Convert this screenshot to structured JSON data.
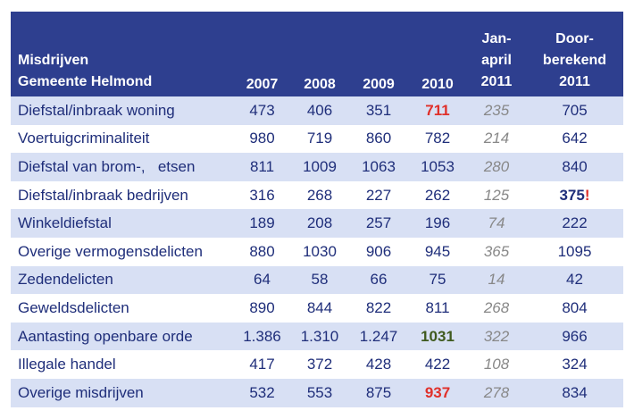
{
  "header": {
    "title_line1": "Misdrijven",
    "title_line2": "Gemeente Helmond",
    "years": [
      "2007",
      "2008",
      "2009",
      "2010"
    ],
    "jan_line1": "Jan-",
    "jan_line2": "april",
    "jan_line3": "2011",
    "door_line1": "Door-",
    "door_line2": "berekend",
    "door_line3": "2011"
  },
  "rows": [
    {
      "name": "Diefstal/inbraak woning",
      "y2007": "473",
      "y2008": "406",
      "y2009": "351",
      "y2010": "711",
      "jan": "235",
      "door": "705",
      "door_mark": ""
    },
    {
      "name": "Voertuigcriminaliteit",
      "y2007": "980",
      "y2008": "719",
      "y2009": "860",
      "y2010": "782",
      "jan": "214",
      "door": "642",
      "door_mark": ""
    },
    {
      "name": "Diefstal van brom-,   etsen",
      "y2007": "811",
      "y2008": "1009",
      "y2009": "1063",
      "y2010": "1053",
      "jan": "280",
      "door": "840",
      "door_mark": ""
    },
    {
      "name": "Diefstal/inbraak bedrijven",
      "y2007": "316",
      "y2008": "268",
      "y2009": "227",
      "y2010": "262",
      "jan": "125",
      "door": "375",
      "door_mark": "!"
    },
    {
      "name": "Winkeldiefstal",
      "y2007": "189",
      "y2008": "208",
      "y2009": "257",
      "y2010": "196",
      "jan": "74",
      "door": "222",
      "door_mark": ""
    },
    {
      "name": "Overige vermogensdelicten",
      "y2007": "880",
      "y2008": "1030",
      "y2009": "906",
      "y2010": "945",
      "jan": "365",
      "door": "1095",
      "door_mark": ""
    },
    {
      "name": "Zedendelicten",
      "y2007": "64",
      "y2008": "58",
      "y2009": "66",
      "y2010": "75",
      "jan": "14",
      "door": "42",
      "door_mark": ""
    },
    {
      "name": "Geweldsdelicten",
      "y2007": "890",
      "y2008": "844",
      "y2009": "822",
      "y2010": "811",
      "jan": "268",
      "door": "804",
      "door_mark": ""
    },
    {
      "name": "Aantasting openbare orde",
      "y2007": "1.386",
      "y2008": "1.310",
      "y2009": "1.247",
      "y2010": "1031",
      "jan": "322",
      "door": "966",
      "door_mark": ""
    },
    {
      "name": "Illegale handel",
      "y2007": "417",
      "y2008": "372",
      "y2009": "428",
      "y2010": "422",
      "jan": "108",
      "door": "324",
      "door_mark": ""
    },
    {
      "name": "Overige misdrijven",
      "y2007": "532",
      "y2008": "553",
      "y2009": "875",
      "y2010": "937",
      "jan": "278",
      "door": "834",
      "door_mark": ""
    }
  ],
  "highlight_colors": {
    "red": "#e0302a",
    "green": "#3f5a1e",
    "header_bg": "#2e3f8f",
    "row_band": "#d8e0f4"
  }
}
